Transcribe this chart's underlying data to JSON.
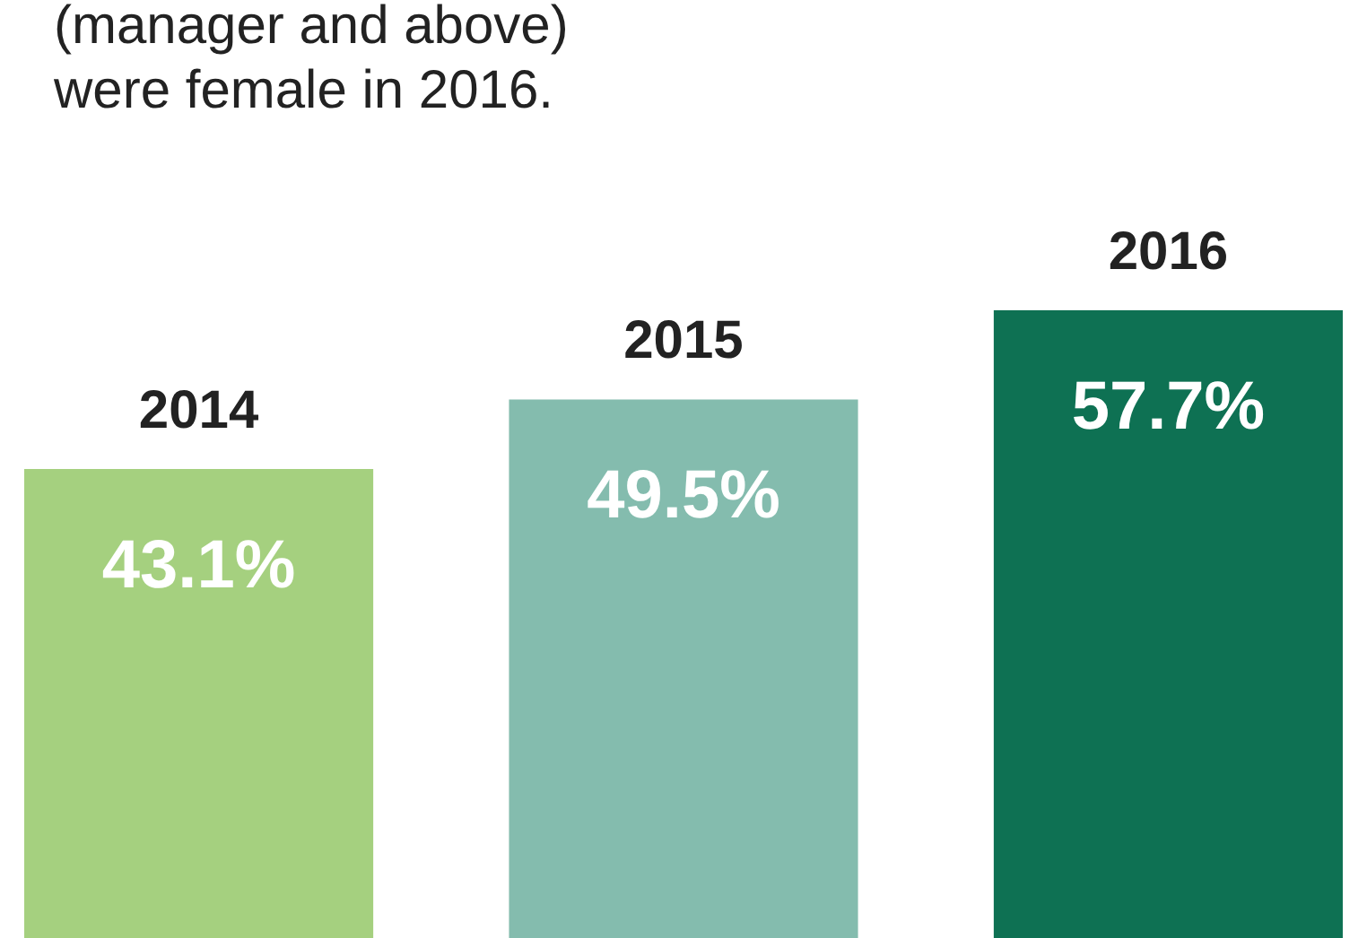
{
  "chart_data": {
    "type": "bar",
    "annotations": [
      "(manager and above)",
      "were female in 2016."
    ],
    "categories": [
      "2014",
      "2015",
      "2016"
    ],
    "values": [
      43.1,
      49.5,
      57.7
    ],
    "colors": [
      "#a5d07f",
      "#84bcae",
      "#0e7153"
    ],
    "data_labels": true,
    "value_labels": [
      "43.1%",
      "49.5%",
      "57.7%"
    ]
  }
}
